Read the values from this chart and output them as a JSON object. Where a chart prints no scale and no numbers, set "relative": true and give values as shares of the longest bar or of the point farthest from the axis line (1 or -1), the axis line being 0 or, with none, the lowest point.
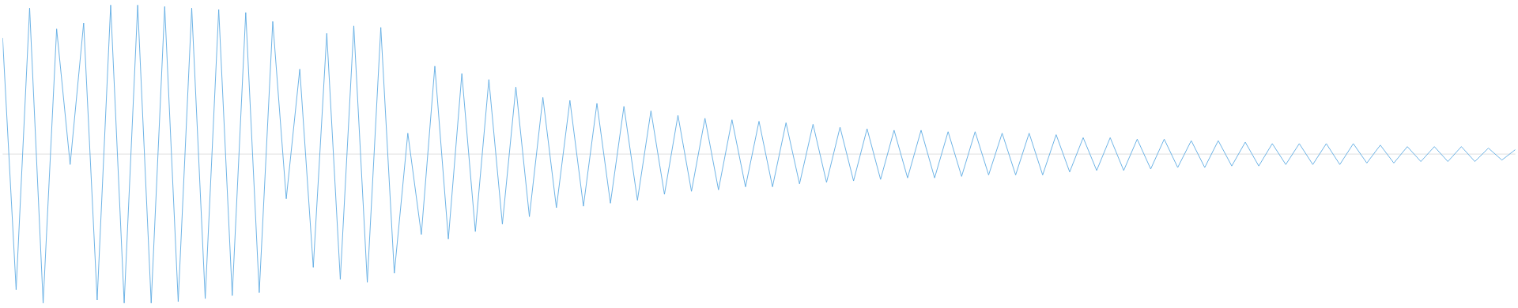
{
  "chart_data": {
    "type": "line",
    "relative": true,
    "categories": [
      null,
      null,
      null,
      null,
      null,
      null,
      null,
      null,
      null,
      null,
      null,
      null,
      null,
      null,
      null,
      null,
      null,
      null,
      null,
      null,
      null,
      null,
      null,
      null,
      null,
      null,
      null,
      null,
      null,
      null,
      null,
      null,
      null,
      null,
      null,
      null,
      null,
      null,
      null,
      null,
      null,
      null,
      null,
      null,
      null,
      null,
      null,
      null,
      null,
      null,
      null,
      null,
      null,
      null,
      null,
      null,
      null,
      null,
      null,
      null,
      null,
      null,
      null,
      null,
      null,
      null,
      null,
      null,
      null,
      null,
      null,
      null,
      null,
      null,
      null,
      null,
      null,
      null,
      null,
      null,
      null,
      null,
      null,
      null,
      null,
      null,
      null,
      null,
      null,
      null,
      null,
      null,
      null,
      null,
      null,
      null,
      null,
      null,
      null,
      null,
      null,
      null,
      null,
      null,
      null,
      null,
      null,
      null,
      null,
      null,
      null,
      null,
      null
    ],
    "series": [
      {
        "color": "#5dabe3",
        "values": [
          0.78,
          -0.91,
          0.98,
          -1,
          0.84,
          -0.07,
          0.88,
          -0.98,
          1,
          -1,
          1,
          -1,
          0.99,
          -0.99,
          0.98,
          -0.97,
          0.97,
          -0.95,
          0.95,
          -0.93,
          0.89,
          -0.3,
          0.57,
          -0.76,
          0.81,
          -0.84,
          0.86,
          -0.86,
          0.85,
          -0.8,
          0.14,
          -0.54,
          0.59,
          -0.57,
          0.54,
          -0.52,
          0.5,
          -0.47,
          0.45,
          -0.42,
          0.38,
          -0.36,
          0.36,
          -0.35,
          0.34,
          -0.33,
          0.32,
          -0.31,
          0.29,
          -0.27,
          0.26,
          -0.25,
          0.24,
          -0.24,
          0.23,
          -0.22,
          0.22,
          -0.22,
          0.21,
          -0.2,
          0.2,
          -0.19,
          0.18,
          -0.18,
          0.17,
          -0.17,
          0.16,
          -0.16,
          0.16,
          -0.16,
          0.15,
          -0.15,
          0.15,
          -0.14,
          0.14,
          -0.14,
          0.14,
          -0.14,
          0.13,
          -0.12,
          0.11,
          -0.11,
          0.11,
          -0.11,
          0.1,
          -0.1,
          0.1,
          -0.09,
          0.09,
          -0.09,
          0.09,
          -0.08,
          0.08,
          -0.08,
          0.07,
          -0.07,
          0.07,
          -0.07,
          0.07,
          -0.07,
          0.07,
          -0.06,
          0.06,
          -0.06,
          0.05,
          -0.05,
          0.05,
          -0.05,
          0.05,
          -0.05,
          0.04,
          -0.04,
          0.03
        ]
      }
    ]
  }
}
